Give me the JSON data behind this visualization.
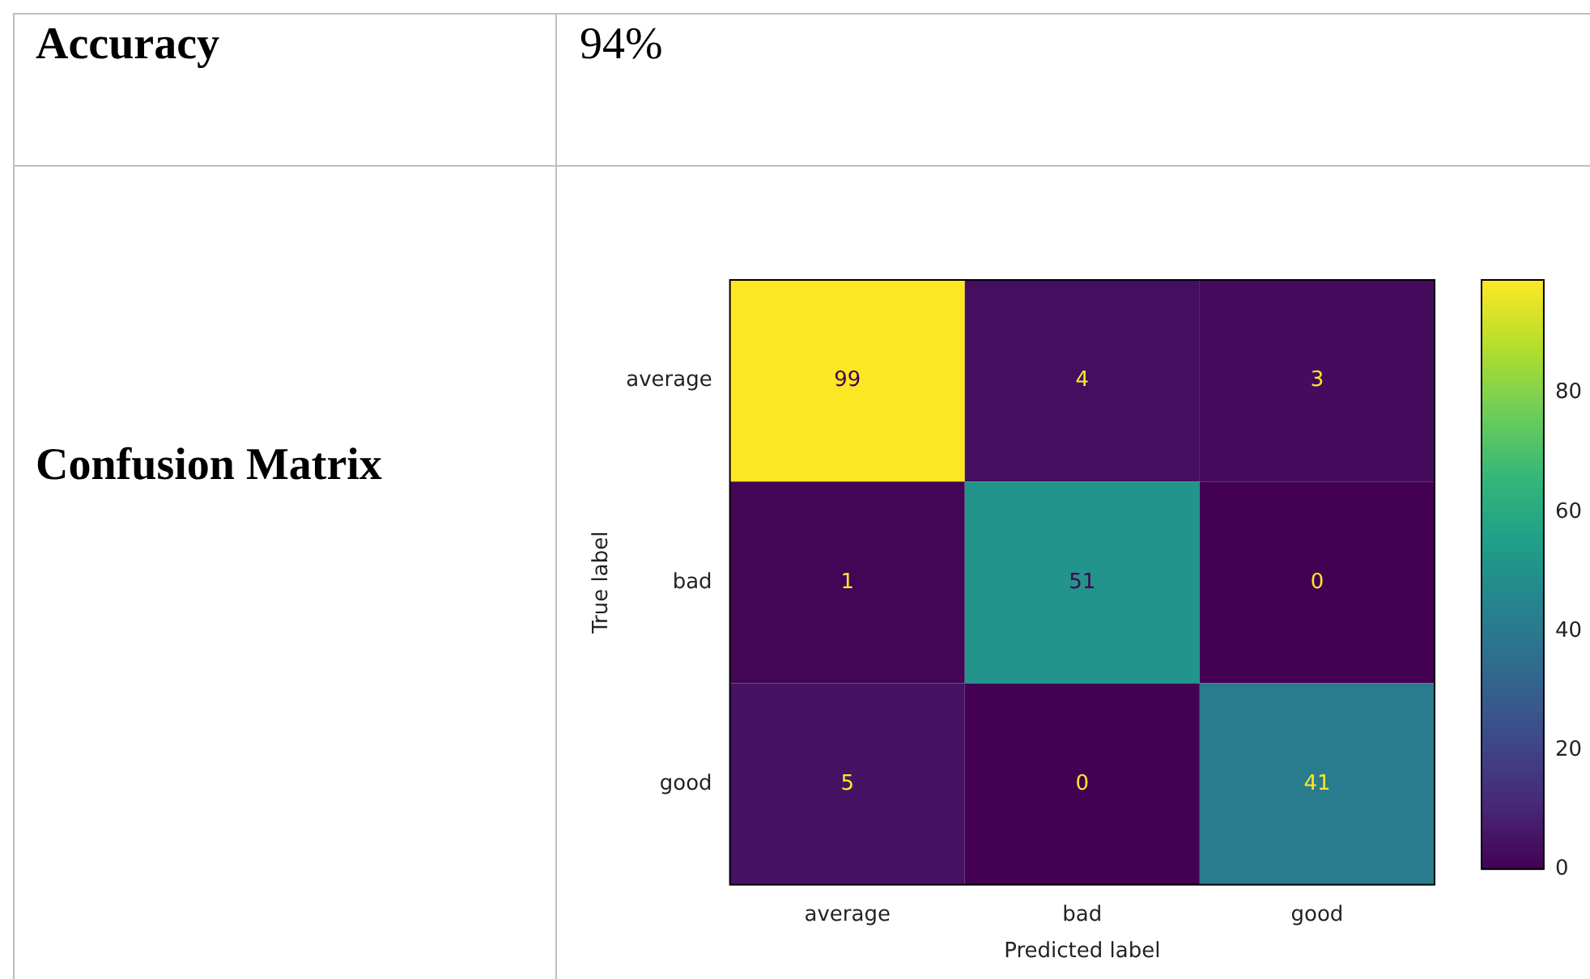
{
  "chart_data": {
    "type": "heatmap",
    "xlabel": "Predicted label",
    "ylabel": "True label",
    "categories": [
      "average",
      "bad",
      "good"
    ],
    "y_categories": [
      "average",
      "bad",
      "good"
    ],
    "cells": [
      [
        99,
        4,
        3
      ],
      [
        1,
        51,
        0
      ],
      [
        5,
        0,
        41
      ]
    ],
    "data_labels": true,
    "clim": [
      0,
      99
    ],
    "cticks": [
      0,
      20,
      40,
      60,
      80
    ],
    "annotations": [
      "Accuracy",
      "94%",
      "Confusion Matrix"
    ]
  }
}
